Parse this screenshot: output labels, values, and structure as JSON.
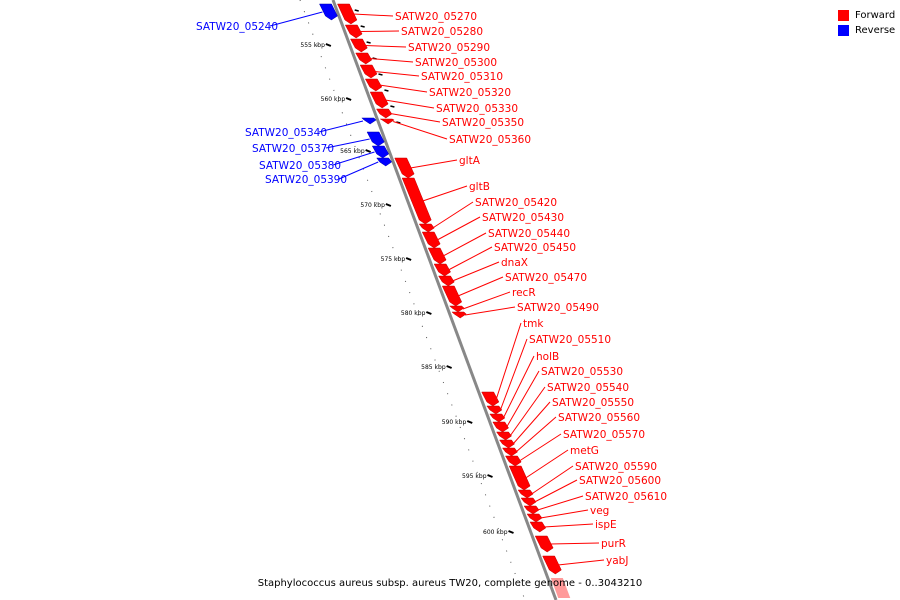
{
  "legend": {
    "forward_label": "Forward",
    "reverse_label": "Reverse"
  },
  "colors": {
    "forward": "#ff0000",
    "reverse": "#0000ff",
    "forward_light": "#ff9a9a",
    "backbone": "#888888"
  },
  "caption": "Staphylococcus aureus subsp. aureus TW20, complete genome - 0..3043210",
  "ticks": [
    {
      "label": "555 kbp",
      "pos_kbp": 555
    },
    {
      "label": "560 kbp",
      "pos_kbp": 560
    },
    {
      "label": "565 kbp",
      "pos_kbp": 565
    },
    {
      "label": "570 kbp",
      "pos_kbp": 570
    },
    {
      "label": "575 kbp",
      "pos_kbp": 575
    },
    {
      "label": "580 kbp",
      "pos_kbp": 580
    },
    {
      "label": "585 kbp",
      "pos_kbp": 585
    },
    {
      "label": "590 kbp",
      "pos_kbp": 590
    },
    {
      "label": "595 kbp",
      "pos_kbp": 595
    },
    {
      "label": "600 kbp",
      "pos_kbp": 600
    }
  ],
  "genes": [
    {
      "name": "SATW20_05240",
      "strand": "reverse"
    },
    {
      "name": "SATW20_05270",
      "strand": "forward"
    },
    {
      "name": "SATW20_05280",
      "strand": "forward"
    },
    {
      "name": "SATW20_05290",
      "strand": "forward"
    },
    {
      "name": "SATW20_05300",
      "strand": "forward"
    },
    {
      "name": "SATW20_05310",
      "strand": "forward"
    },
    {
      "name": "SATW20_05320",
      "strand": "forward"
    },
    {
      "name": "SATW20_05330",
      "strand": "forward"
    },
    {
      "name": "SATW20_05350",
      "strand": "forward"
    },
    {
      "name": "SATW20_05360",
      "strand": "forward"
    },
    {
      "name": "SATW20_05340",
      "strand": "reverse"
    },
    {
      "name": "SATW20_05370",
      "strand": "reverse"
    },
    {
      "name": "SATW20_05380",
      "strand": "reverse"
    },
    {
      "name": "SATW20_05390",
      "strand": "reverse"
    },
    {
      "name": "gltA",
      "strand": "forward"
    },
    {
      "name": "gltB",
      "strand": "forward"
    },
    {
      "name": "SATW20_05420",
      "strand": "forward"
    },
    {
      "name": "SATW20_05430",
      "strand": "forward"
    },
    {
      "name": "SATW20_05440",
      "strand": "forward"
    },
    {
      "name": "SATW20_05450",
      "strand": "forward"
    },
    {
      "name": "dnaX",
      "strand": "forward"
    },
    {
      "name": "SATW20_05470",
      "strand": "forward"
    },
    {
      "name": "recR",
      "strand": "forward"
    },
    {
      "name": "SATW20_05490",
      "strand": "forward"
    },
    {
      "name": "tmk",
      "strand": "forward"
    },
    {
      "name": "SATW20_05510",
      "strand": "forward"
    },
    {
      "name": "holB",
      "strand": "forward"
    },
    {
      "name": "SATW20_05530",
      "strand": "forward"
    },
    {
      "name": "SATW20_05540",
      "strand": "forward"
    },
    {
      "name": "SATW20_05550",
      "strand": "forward"
    },
    {
      "name": "SATW20_05560",
      "strand": "forward"
    },
    {
      "name": "SATW20_05570",
      "strand": "forward"
    },
    {
      "name": "metG",
      "strand": "forward"
    },
    {
      "name": "SATW20_05590",
      "strand": "forward"
    },
    {
      "name": "SATW20_05600",
      "strand": "forward"
    },
    {
      "name": "SATW20_05610",
      "strand": "forward"
    },
    {
      "name": "veg",
      "strand": "forward"
    },
    {
      "name": "ispE",
      "strand": "forward"
    },
    {
      "name": "purR",
      "strand": "forward"
    },
    {
      "name": "yabJ",
      "strand": "forward"
    }
  ]
}
